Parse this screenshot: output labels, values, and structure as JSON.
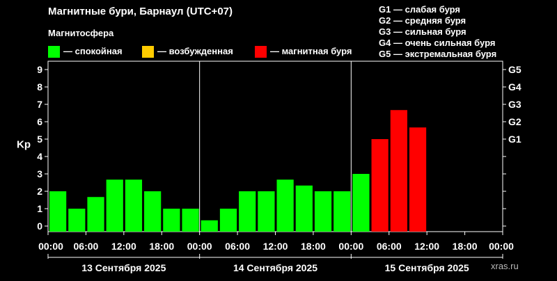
{
  "header": {
    "title": "Магнитные бури, Барнаул (UTC+07)",
    "subtitle": "Магнитосфера"
  },
  "legend": [
    {
      "color": "#00ff00",
      "label": "— спокойная"
    },
    {
      "color": "#ffcc00",
      "label": "— возбужденная"
    },
    {
      "color": "#ff0000",
      "label": "— магнитная буря"
    }
  ],
  "storm_levels": [
    "G1 — слабая буря",
    "G2 — средняя буря",
    "G3 — сильная буря",
    "G4 — очень сильная буря",
    "G5 — экстремальная буря"
  ],
  "watermark": "xras.ru",
  "chart_data": {
    "type": "bar",
    "ylabel": "Kp",
    "ylim": [
      0,
      9
    ],
    "yticks": [
      0,
      1,
      2,
      3,
      4,
      5,
      6,
      7,
      8,
      9
    ],
    "g_ticks": [
      {
        "label": "G1",
        "value": 5
      },
      {
        "label": "G2",
        "value": 6
      },
      {
        "label": "G3",
        "value": 7
      },
      {
        "label": "G4",
        "value": 8
      },
      {
        "label": "G5",
        "value": 9
      }
    ],
    "x_tick_labels": [
      "00:00",
      "06:00",
      "12:00",
      "18:00",
      "00:00",
      "06:00",
      "12:00",
      "18:00",
      "00:00",
      "06:00",
      "12:00",
      "18:00",
      "00:00"
    ],
    "days": [
      "13 Сентября 2025",
      "14 Сентября 2025",
      "15 Сентября 2025"
    ],
    "colors": {
      "quiet": "#00ff00",
      "active": "#ffcc00",
      "storm": "#ff0000"
    },
    "bars": [
      {
        "day": "13 Сентября 2025",
        "time": "00:00",
        "kp": 2.0,
        "level": "quiet"
      },
      {
        "day": "13 Сентября 2025",
        "time": "03:00",
        "kp": 1.0,
        "level": "quiet"
      },
      {
        "day": "13 Сентября 2025",
        "time": "06:00",
        "kp": 1.67,
        "level": "quiet"
      },
      {
        "day": "13 Сентября 2025",
        "time": "09:00",
        "kp": 2.67,
        "level": "quiet"
      },
      {
        "day": "13 Сентября 2025",
        "time": "12:00",
        "kp": 2.67,
        "level": "quiet"
      },
      {
        "day": "13 Сентября 2025",
        "time": "15:00",
        "kp": 2.0,
        "level": "quiet"
      },
      {
        "day": "13 Сентября 2025",
        "time": "18:00",
        "kp": 1.0,
        "level": "quiet"
      },
      {
        "day": "13 Сентября 2025",
        "time": "21:00",
        "kp": 1.0,
        "level": "quiet"
      },
      {
        "day": "14 Сентября 2025",
        "time": "00:00",
        "kp": 0.33,
        "level": "quiet"
      },
      {
        "day": "14 Сентября 2025",
        "time": "03:00",
        "kp": 1.0,
        "level": "quiet"
      },
      {
        "day": "14 Сентября 2025",
        "time": "06:00",
        "kp": 2.0,
        "level": "quiet"
      },
      {
        "day": "14 Сентября 2025",
        "time": "09:00",
        "kp": 2.0,
        "level": "quiet"
      },
      {
        "day": "14 Сентября 2025",
        "time": "12:00",
        "kp": 2.67,
        "level": "quiet"
      },
      {
        "day": "14 Сентября 2025",
        "time": "15:00",
        "kp": 2.33,
        "level": "quiet"
      },
      {
        "day": "14 Сентября 2025",
        "time": "18:00",
        "kp": 2.0,
        "level": "quiet"
      },
      {
        "day": "14 Сентября 2025",
        "time": "21:00",
        "kp": 2.0,
        "level": "quiet"
      },
      {
        "day": "15 Сентября 2025",
        "time": "00:00",
        "kp": 3.0,
        "level": "quiet"
      },
      {
        "day": "15 Сентября 2025",
        "time": "03:00",
        "kp": 5.0,
        "level": "storm"
      },
      {
        "day": "15 Сентября 2025",
        "time": "06:00",
        "kp": 6.67,
        "level": "storm"
      },
      {
        "day": "15 Сентября 2025",
        "time": "09:00",
        "kp": 5.67,
        "level": "storm"
      }
    ]
  }
}
